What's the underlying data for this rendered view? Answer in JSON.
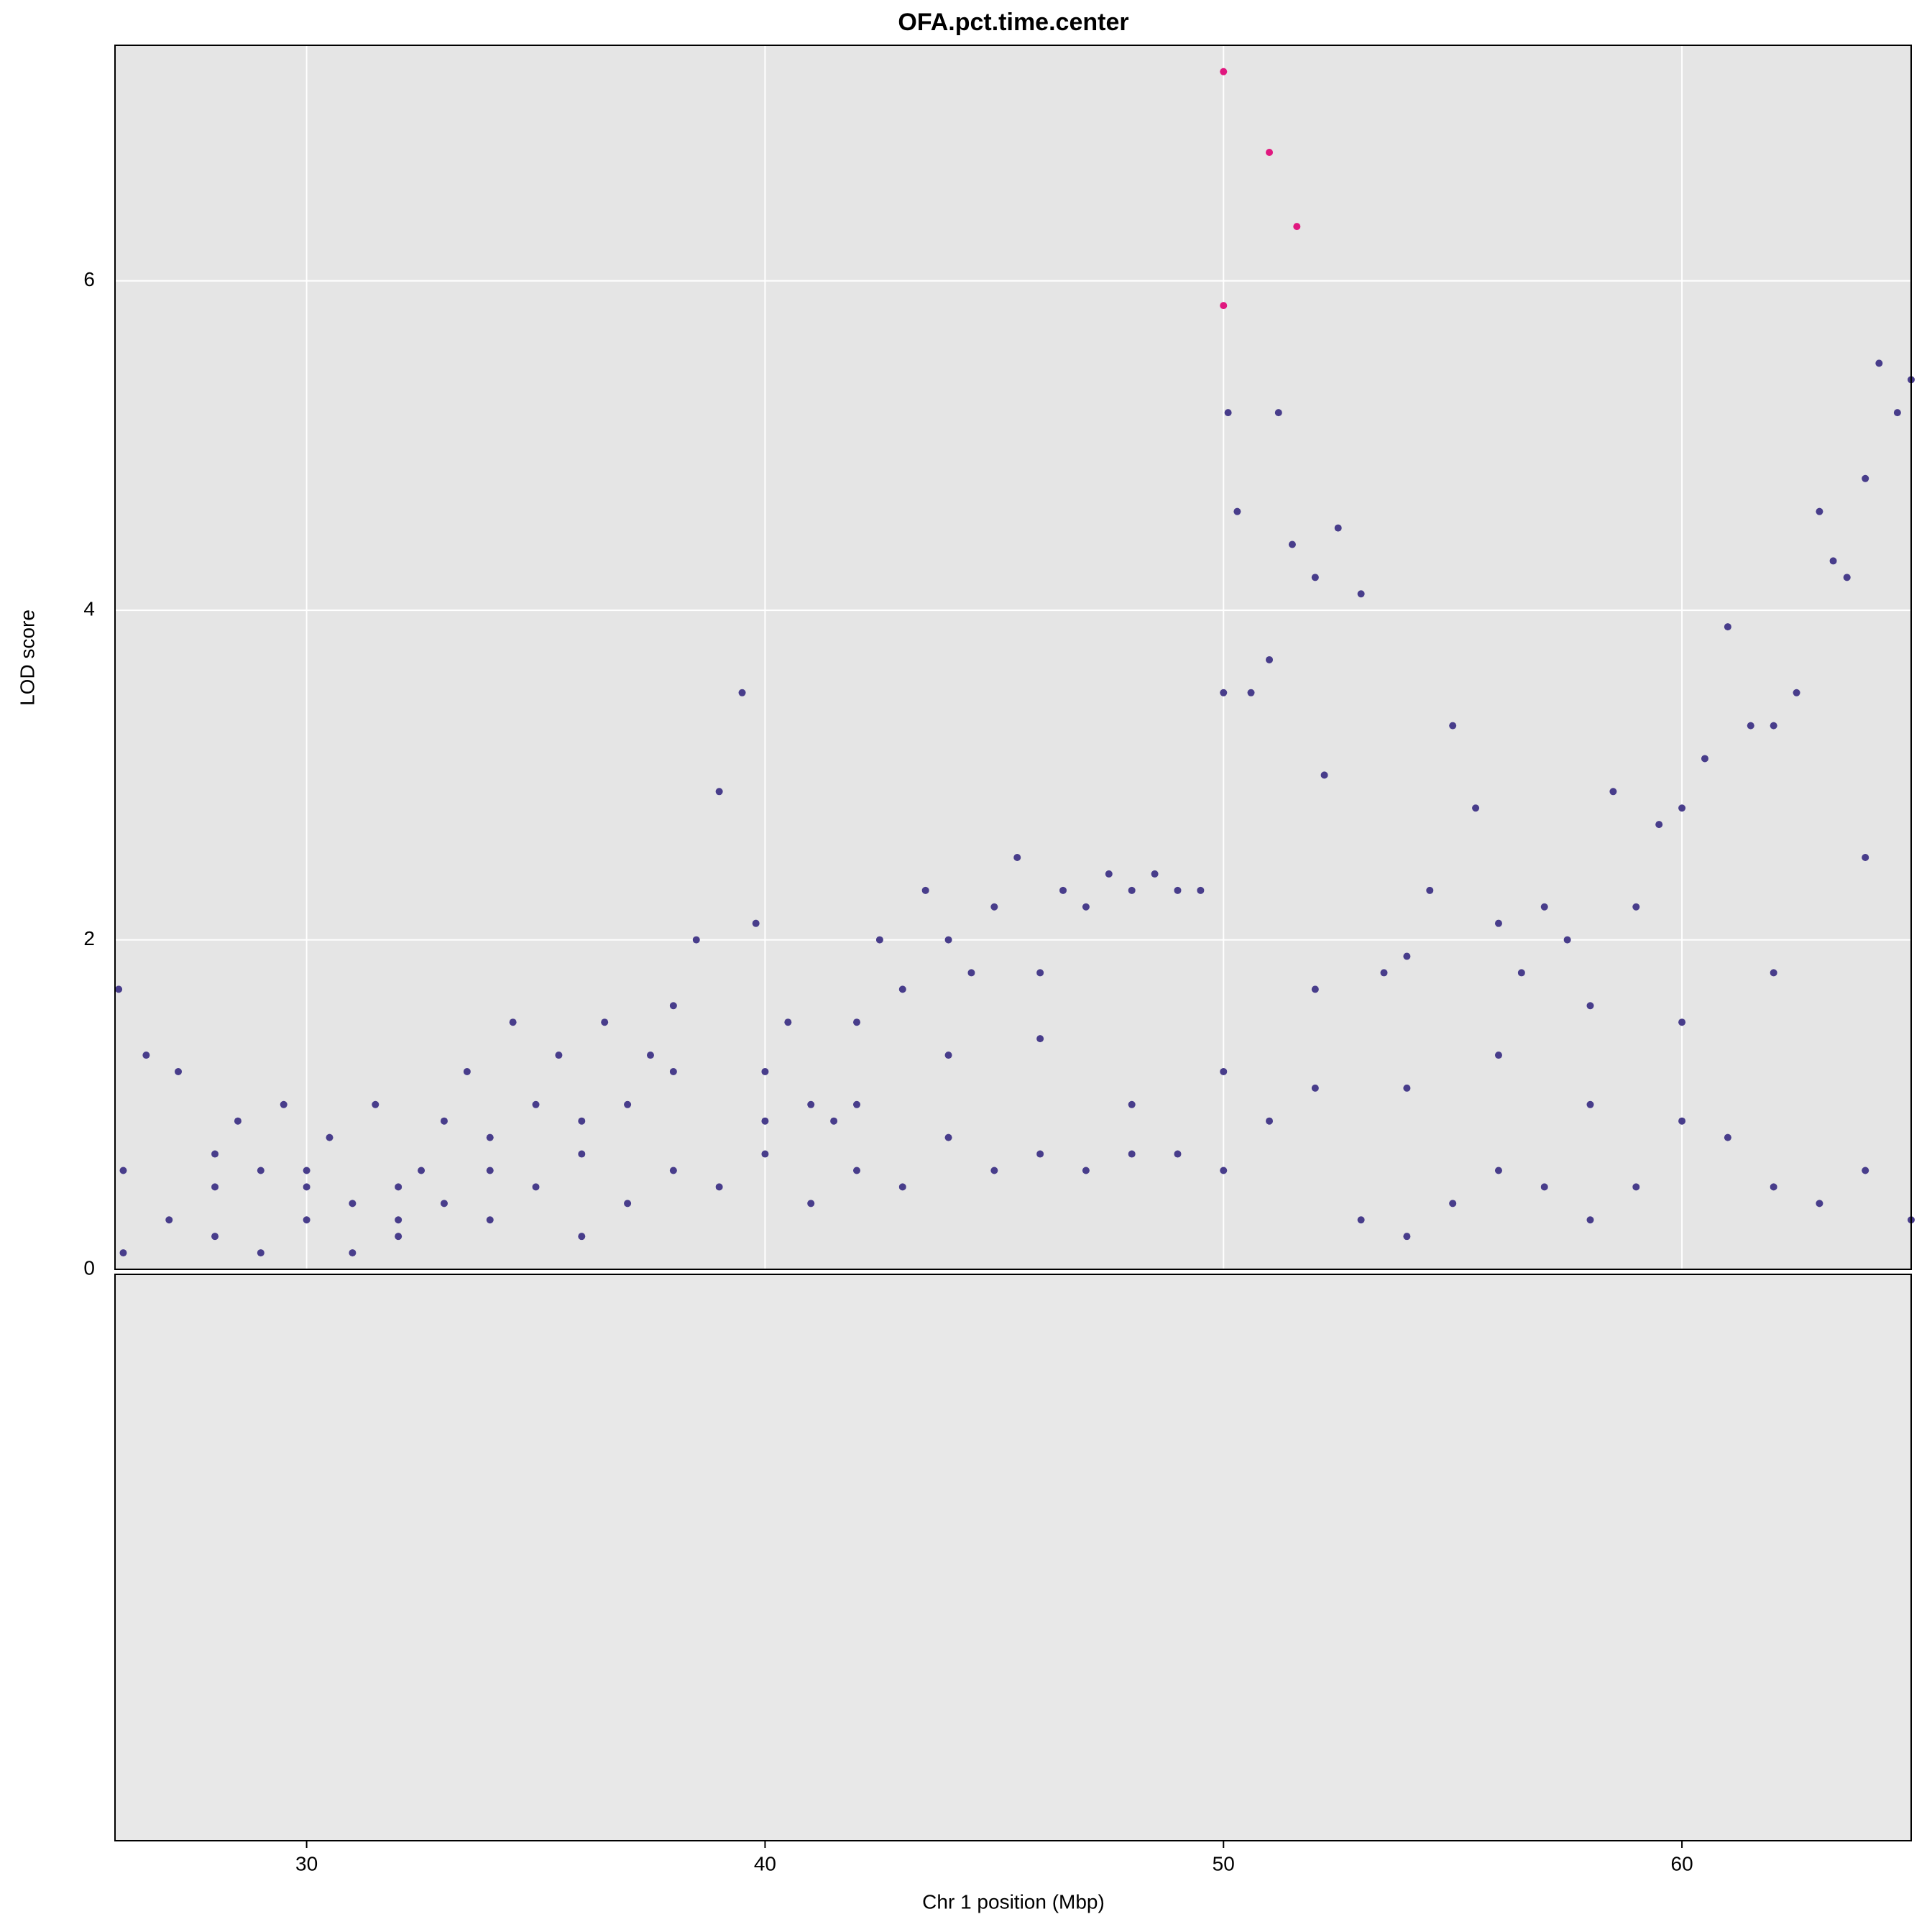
{
  "chart_data": {
    "type": "scatter",
    "title": "OFA.pct.time.center",
    "x_label": "Chr 1 position (Mbp)",
    "y_label": "LOD score",
    "xlim": [
      25.82,
      65.0
    ],
    "ylim": [
      0,
      7.43
    ],
    "xticks": [
      30,
      40,
      50,
      60
    ],
    "yticks": [
      0,
      2,
      4,
      6
    ],
    "grid": true,
    "series": [
      {
        "color": "#483d8b",
        "x": [
          25.9,
          26.5,
          27.2,
          28,
          28.5,
          29,
          29.5,
          30,
          30.5,
          31,
          31.5,
          32,
          32.5,
          33,
          33.5,
          34,
          34.5,
          35,
          35.5,
          36,
          36.5,
          37,
          37.5,
          38,
          38.5,
          39,
          39.5,
          39.8,
          40,
          40.5,
          41,
          41.5,
          42,
          42.5,
          43,
          43.5,
          44,
          44.5,
          45,
          45.5,
          46,
          46.5,
          47,
          47.5,
          48,
          48.5,
          49,
          49.5,
          50,
          50.1,
          50.3,
          50.6,
          51,
          51.2,
          51.5,
          52,
          52.2,
          52.5,
          53,
          53.5,
          54,
          54.5,
          55,
          55.5,
          56,
          56.5,
          57,
          57.5,
          58,
          58.5,
          59,
          59.5,
          60,
          60.5,
          61,
          61.5,
          62,
          62.5,
          63,
          63.3,
          63.6,
          64,
          64.3,
          64.7,
          65,
          26,
          27,
          28,
          29,
          30,
          31,
          32,
          33,
          34,
          35,
          36,
          37,
          38,
          39,
          40,
          41,
          42,
          43,
          44,
          45,
          46,
          47,
          48,
          49,
          50,
          51,
          52,
          53,
          54,
          55,
          56,
          57,
          58,
          59,
          60,
          61,
          62,
          63,
          64,
          65,
          26,
          28,
          30,
          32,
          34,
          36,
          38,
          40,
          42,
          44,
          46,
          48,
          50,
          52,
          54,
          56,
          58,
          60,
          62,
          64
        ],
        "y": [
          1.7,
          1.3,
          1.2,
          0.7,
          0.9,
          0.6,
          1.0,
          0.5,
          0.8,
          0.4,
          1.0,
          0.3,
          0.6,
          0.9,
          1.2,
          0.8,
          1.5,
          1.0,
          1.3,
          0.9,
          1.5,
          1.0,
          1.3,
          1.6,
          2.0,
          2.9,
          3.5,
          2.1,
          1.2,
          1.5,
          1.0,
          0.9,
          1.5,
          2.0,
          1.7,
          2.3,
          2.0,
          1.8,
          2.2,
          2.5,
          1.8,
          2.3,
          2.2,
          2.4,
          2.3,
          2.4,
          2.3,
          2.3,
          3.5,
          5.2,
          4.6,
          3.5,
          3.7,
          5.2,
          4.4,
          4.2,
          3.0,
          4.5,
          4.1,
          1.8,
          1.9,
          2.3,
          3.3,
          2.8,
          2.1,
          1.8,
          2.2,
          2.0,
          1.6,
          2.9,
          2.2,
          2.7,
          2.8,
          3.1,
          3.9,
          3.3,
          3.3,
          3.5,
          4.6,
          4.3,
          4.2,
          4.8,
          5.5,
          5.2,
          5.4,
          0.1,
          0.3,
          0.2,
          0.1,
          0.3,
          0.1,
          0.2,
          0.4,
          0.3,
          0.5,
          0.2,
          0.4,
          0.6,
          0.5,
          0.7,
          0.4,
          0.6,
          0.5,
          0.8,
          0.6,
          0.7,
          0.6,
          0.7,
          0.7,
          0.6,
          0.9,
          1.1,
          0.3,
          0.2,
          0.4,
          0.6,
          0.5,
          0.3,
          0.5,
          0.9,
          0.8,
          0.5,
          0.4,
          0.6,
          0.3,
          0.6,
          0.5,
          0.6,
          0.5,
          0.6,
          0.7,
          1.2,
          0.9,
          1.0,
          1.3,
          1.4,
          1.0,
          1.2,
          1.7,
          1.1,
          1.3,
          1.0,
          1.5,
          1.8,
          2.5
        ]
      },
      {
        "color": "#e0187f",
        "x": [
          50.0,
          51.0,
          51.6,
          50.0
        ],
        "y": [
          7.27,
          6.78,
          6.33,
          5.85
        ]
      }
    ]
  }
}
